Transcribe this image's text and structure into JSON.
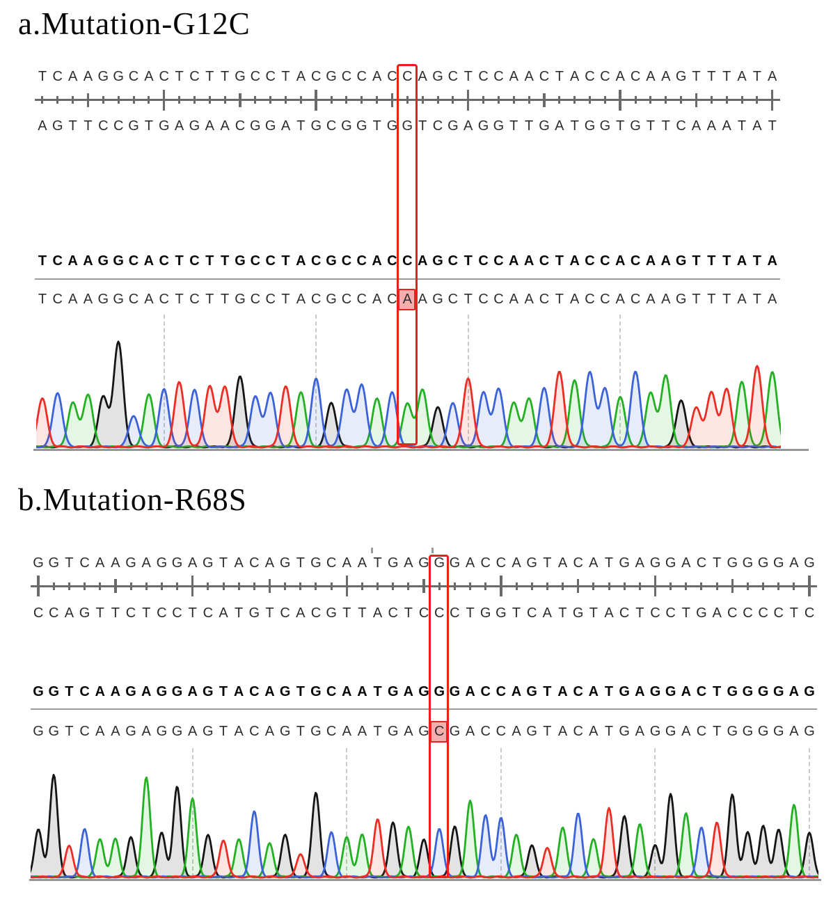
{
  "colors": {
    "base_A": "#23b123",
    "base_C": "#3b62d9",
    "base_G": "#151515",
    "base_T": "#ec2d24",
    "mutation_box": "#ee1f1b",
    "mutation_fill": "#f5aeae",
    "ruler": "#6a6a6a",
    "dashed_gridline": "#c9c9c9",
    "divider": "#9b9b9b",
    "baseline": "#969696",
    "text": "#2e2e2e"
  },
  "panels": [
    {
      "label": "a",
      "title": "a.Mutation-G12C",
      "mutation": {
        "index": 24,
        "ref_base": "C",
        "alt_base": "A"
      },
      "sequences": {
        "top_strand": "TCAAGGCACTCTTGCCTACGCCACCAGCTCCAACTACCACAAGTTTATA",
        "bottom_strand": "AGTTCCGTGAGAACGGATGCGGTGGTCGAGGTTGATGGTGTTCAAATAT",
        "reference": "TCAAGGCACTCTTGCCTACGCCACCAGCTCCAACTACCACAAGTTTATA",
        "sample": "TCAAGGCACTCTTGCCTACGCCACAAGCTCCAACTACCACAAGTTTATA"
      },
      "ruler": {
        "tick_every": 1,
        "medium_phase": 3,
        "tall_phase": 8
      },
      "gridline_indices": [
        8,
        18,
        28,
        38
      ],
      "chart_data": {
        "type": "area",
        "title": "Sanger chromatogram, sample strand (G12C, C>A on shown strand)",
        "bases": "TCAAGGCACTCTTGCCTACGCCACAAGCTCCAACTACCACAAGTTTATA",
        "base_color_legend": {
          "A": "green",
          "C": "blue",
          "G": "black",
          "T": "red"
        },
        "peak_heights": [
          0.46,
          0.52,
          0.42,
          0.5,
          0.48,
          1.0,
          0.3,
          0.5,
          0.55,
          0.62,
          0.55,
          0.58,
          0.58,
          0.68,
          0.48,
          0.52,
          0.58,
          0.52,
          0.65,
          0.42,
          0.55,
          0.6,
          0.46,
          0.52,
          0.42,
          0.55,
          0.38,
          0.42,
          0.66,
          0.52,
          0.56,
          0.42,
          0.46,
          0.56,
          0.72,
          0.64,
          0.72,
          0.56,
          0.48,
          0.72,
          0.52,
          0.68,
          0.45,
          0.38,
          0.52,
          0.55,
          0.62,
          0.78,
          0.72
        ],
        "ylim": [
          0,
          1.05
        ],
        "grid": "dashed vertical every 10 bases"
      }
    },
    {
      "label": "b",
      "title": "b.Mutation-R68S",
      "mutation": {
        "index": 26,
        "ref_base": "G",
        "alt_base": "C"
      },
      "sequences": {
        "top_strand": "GGTCAAGAGGAGTACAGTGCAATGAGGGACCAGTACATGAGGACTGGGGAG",
        "bottom_strand": "CCAGTTCTCCTCATGTCACGTTACTCCCTGGTCATGTACTCCTGACCCCTC",
        "reference": "GGTCAAGAGGAGTACAGTGCAATGAGGGACCAGTACATGAGGACTGGGGAG",
        "sample": "GGTCAAGAGGAGTACAGTGCAATGAGCGACCAGTACATGAGGACTGGGGAG"
      },
      "ruler": {
        "tick_every": 1,
        "medium_phase": 5,
        "tall_phase": 0
      },
      "gridline_indices": [
        10,
        20,
        30,
        40,
        50
      ],
      "chart_data": {
        "type": "area",
        "title": "Sanger chromatogram, sample strand (R68S, G>C)",
        "bases": "GGTCAAGAGGAGTACAGTGCAATGAGCGACCAGTACATGAGGACTGGGGAG",
        "base_color_legend": {
          "A": "green",
          "C": "blue",
          "G": "black",
          "T": "red"
        },
        "peak_heights": [
          0.45,
          0.97,
          0.3,
          0.45,
          0.36,
          0.36,
          0.38,
          0.94,
          0.42,
          0.85,
          0.74,
          0.4,
          0.35,
          0.36,
          0.62,
          0.32,
          0.4,
          0.22,
          0.8,
          0.42,
          0.38,
          0.4,
          0.55,
          0.52,
          0.48,
          0.35,
          0.46,
          0.48,
          0.72,
          0.58,
          0.56,
          0.4,
          0.3,
          0.28,
          0.47,
          0.6,
          0.36,
          0.65,
          0.58,
          0.5,
          0.3,
          0.78,
          0.6,
          0.47,
          0.52,
          0.78,
          0.42,
          0.48,
          0.45,
          0.68,
          0.42
        ],
        "ylim": [
          0,
          1.05
        ],
        "grid": "dashed vertical every 10 bases"
      }
    }
  ]
}
